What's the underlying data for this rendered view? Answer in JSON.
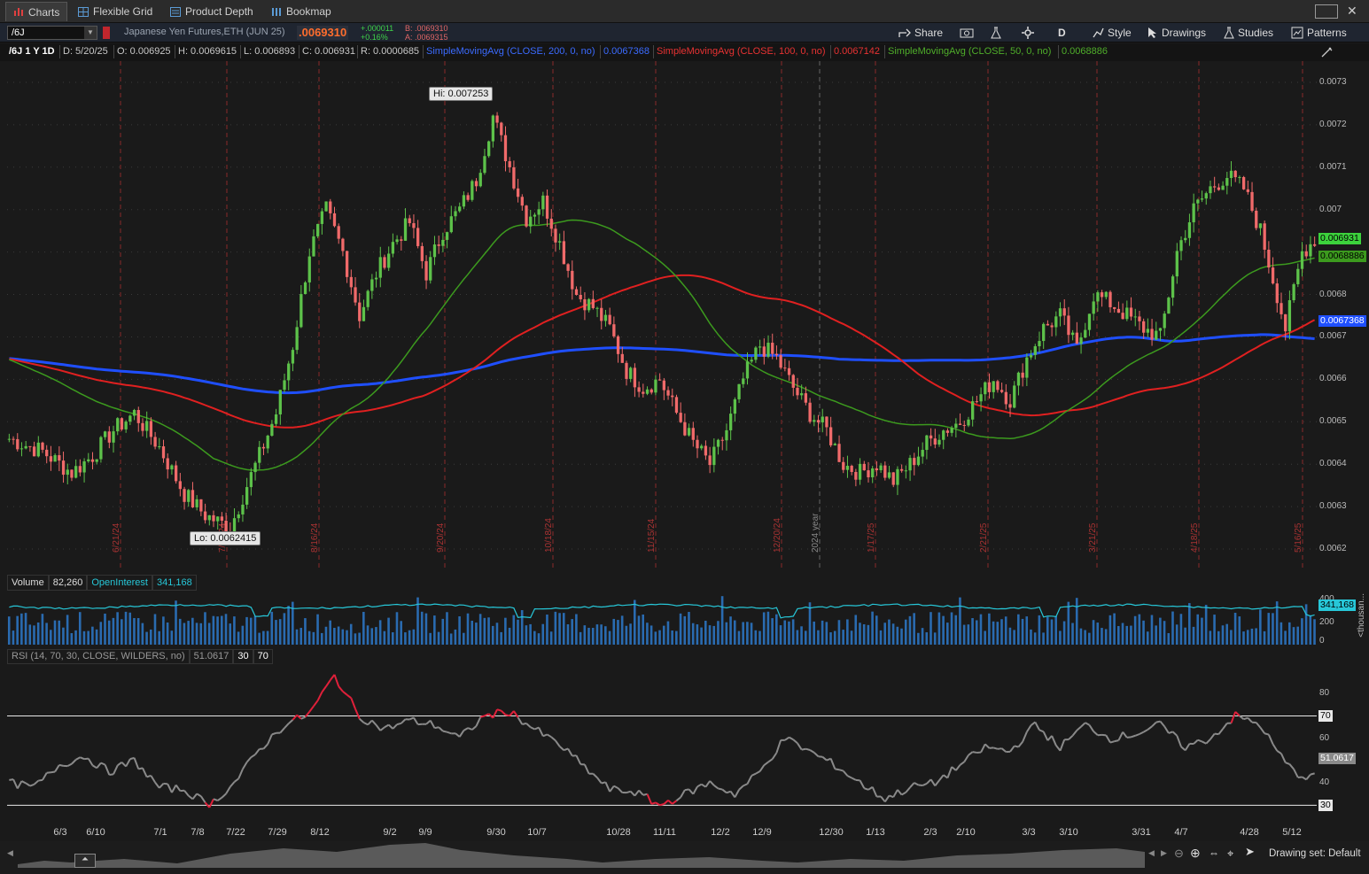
{
  "tabs": [
    {
      "label": "Charts",
      "icon": "bar-chart-icon"
    },
    {
      "label": "Flexible Grid",
      "icon": "grid-icon"
    },
    {
      "label": "Product Depth",
      "icon": "depth-icon"
    },
    {
      "label": "Bookmap",
      "icon": "bookmap-icon"
    }
  ],
  "toolbar": {
    "symbol": "/6J",
    "description": "Japanese Yen Futures,ETH (JUN 25)",
    "last": ".0069310",
    "net_change": "+.000011",
    "pct_change": "+0.16%",
    "bid": "B: .0069310",
    "ask": "A: .0069315",
    "share": "Share",
    "aggregation": "D",
    "style": "Style",
    "drawings": "Drawings",
    "studies": "Studies",
    "patterns": "Patterns"
  },
  "infobar": {
    "symbol_period": "/6J 1 Y 1D",
    "date": "D: 5/20/25",
    "open": "O: 0.006925",
    "high": "H: 0.0069615",
    "low": "L: 0.006893",
    "close": "C: 0.006931",
    "range": "R: 0.0000685",
    "sma200": "SimpleMovingAvg (CLOSE, 200, 0, no)",
    "sma200_val": "0.0067368",
    "sma100": "SimpleMovingAvg (CLOSE, 100, 0, no)",
    "sma100_val": "0.0067142",
    "sma50": "SimpleMovingAvg (CLOSE, 50, 0, no)",
    "sma50_val": "0.0068886"
  },
  "chart_data": {
    "type": "candlestick",
    "hi_label": "Hi: 0.007253",
    "lo_label": "Lo: 0.0062415",
    "price_ticks": [
      "0.0073",
      "0.0072",
      "0.0071",
      "0.007",
      "0.0068",
      "0.0067",
      "0.0066",
      "0.0065",
      "0.0064",
      "0.0063",
      "0.0062"
    ],
    "price_ticks_values": [
      0.0073,
      0.0072,
      0.0071,
      0.007,
      0.0068,
      0.0067,
      0.0066,
      0.0065,
      0.0064,
      0.0063,
      0.0062
    ],
    "ylim": [
      0.00615,
      0.00735
    ],
    "last_badge": "0.006931",
    "sma50_badge": "0.0068886",
    "sma200_badge": "0.0067368",
    "vertical_markers": [
      "6/21/24",
      "7/19/24",
      "8/16/24",
      "9/20/24",
      "10/18/24",
      "11/15/24",
      "12/20/24",
      "2024 year",
      "1/17/25",
      "2/21/25",
      "3/21/25",
      "4/18/25",
      "5/16/25"
    ],
    "close_path": [
      [
        0,
        0.00646
      ],
      [
        8,
        0.00643
      ],
      [
        15,
        0.00638
      ],
      [
        20,
        0.00642
      ],
      [
        25,
        0.00648
      ],
      [
        30,
        0.00652
      ],
      [
        36,
        0.00644
      ],
      [
        42,
        0.00633
      ],
      [
        47,
        0.00628
      ],
      [
        53,
        0.00625
      ],
      [
        57,
        0.00635
      ],
      [
        60,
        0.00642
      ],
      [
        64,
        0.00652
      ],
      [
        68,
        0.00668
      ],
      [
        72,
        0.0069
      ],
      [
        76,
        0.007
      ],
      [
        80,
        0.0069
      ],
      [
        84,
        0.00675
      ],
      [
        88,
        0.00685
      ],
      [
        92,
        0.00692
      ],
      [
        96,
        0.00697
      ],
      [
        100,
        0.00685
      ],
      [
        104,
        0.00695
      ],
      [
        108,
        0.007
      ],
      [
        112,
        0.00707
      ],
      [
        116,
        0.00722
      ],
      [
        120,
        0.0071
      ],
      [
        124,
        0.00698
      ],
      [
        128,
        0.00702
      ],
      [
        132,
        0.00692
      ],
      [
        136,
        0.0068
      ],
      [
        140,
        0.00677
      ],
      [
        144,
        0.00672
      ],
      [
        148,
        0.00662
      ],
      [
        152,
        0.00658
      ],
      [
        156,
        0.0066
      ],
      [
        160,
        0.00652
      ],
      [
        164,
        0.00645
      ],
      [
        168,
        0.0064
      ],
      [
        172,
        0.00648
      ],
      [
        176,
        0.0066
      ],
      [
        180,
        0.00668
      ],
      [
        184,
        0.00665
      ],
      [
        188,
        0.00658
      ],
      [
        192,
        0.00652
      ],
      [
        196,
        0.00648
      ],
      [
        200,
        0.0064
      ],
      [
        204,
        0.00638
      ],
      [
        208,
        0.0064
      ],
      [
        212,
        0.00636
      ],
      [
        216,
        0.0064
      ],
      [
        220,
        0.00645
      ],
      [
        224,
        0.00648
      ],
      [
        228,
        0.0065
      ],
      [
        232,
        0.00655
      ],
      [
        236,
        0.0066
      ],
      [
        240,
        0.00655
      ],
      [
        244,
        0.00665
      ],
      [
        248,
        0.00672
      ],
      [
        252,
        0.00675
      ],
      [
        256,
        0.00667
      ],
      [
        260,
        0.0068
      ],
      [
        264,
        0.00678
      ],
      [
        268,
        0.00675
      ],
      [
        272,
        0.00672
      ],
      [
        276,
        0.0067
      ],
      [
        280,
        0.0069
      ],
      [
        284,
        0.007
      ],
      [
        288,
        0.00705
      ],
      [
        292,
        0.00708
      ],
      [
        296,
        0.00705
      ],
      [
        300,
        0.00695
      ],
      [
        304,
        0.0068
      ],
      [
        306,
        0.00672
      ],
      [
        310,
        0.0069
      ],
      [
        313,
        0.00693
      ]
    ],
    "rsi_path": [
      [
        0,
        40
      ],
      [
        6,
        38
      ],
      [
        12,
        48
      ],
      [
        18,
        52
      ],
      [
        24,
        45
      ],
      [
        30,
        50
      ],
      [
        36,
        38
      ],
      [
        42,
        37
      ],
      [
        48,
        30
      ],
      [
        54,
        40
      ],
      [
        60,
        55
      ],
      [
        66,
        66
      ],
      [
        72,
        71
      ],
      [
        78,
        88
      ],
      [
        84,
        70
      ],
      [
        90,
        64
      ],
      [
        96,
        68
      ],
      [
        102,
        66
      ],
      [
        108,
        60
      ],
      [
        114,
        70
      ],
      [
        120,
        72
      ],
      [
        126,
        64
      ],
      [
        132,
        57
      ],
      [
        138,
        47
      ],
      [
        144,
        37
      ],
      [
        150,
        36
      ],
      [
        156,
        30
      ],
      [
        162,
        35
      ],
      [
        168,
        40
      ],
      [
        174,
        35
      ],
      [
        180,
        45
      ],
      [
        186,
        60
      ],
      [
        192,
        54
      ],
      [
        198,
        48
      ],
      [
        204,
        40
      ],
      [
        210,
        33
      ],
      [
        216,
        38
      ],
      [
        222,
        40
      ],
      [
        228,
        48
      ],
      [
        234,
        56
      ],
      [
        240,
        54
      ],
      [
        246,
        66
      ],
      [
        252,
        56
      ],
      [
        258,
        66
      ],
      [
        264,
        60
      ],
      [
        270,
        62
      ],
      [
        276,
        66
      ],
      [
        282,
        56
      ],
      [
        288,
        60
      ],
      [
        294,
        70
      ],
      [
        300,
        66
      ],
      [
        304,
        54
      ],
      [
        308,
        45
      ],
      [
        312,
        42
      ],
      [
        316,
        51
      ]
    ],
    "rsi_levels": [
      30,
      70
    ],
    "rsi_ticks": [
      "80",
      "70",
      "60",
      "51.0617",
      "40",
      "30"
    ],
    "volume_ticks": [
      "400",
      "200",
      "0"
    ],
    "date_axis": [
      {
        "label": "6/3",
        "x": 60
      },
      {
        "label": "6/10",
        "x": 100
      },
      {
        "label": "7/1",
        "x": 173
      },
      {
        "label": "7/8",
        "x": 215
      },
      {
        "label": "7/22",
        "x": 258
      },
      {
        "label": "7/29",
        "x": 305
      },
      {
        "label": "8/12",
        "x": 353
      },
      {
        "label": "9/2",
        "x": 432
      },
      {
        "label": "9/9",
        "x": 472
      },
      {
        "label": "9/30",
        "x": 552
      },
      {
        "label": "10/7",
        "x": 598
      },
      {
        "label": "10/28",
        "x": 690
      },
      {
        "label": "11/11",
        "x": 742
      },
      {
        "label": "12/2",
        "x": 805
      },
      {
        "label": "12/9",
        "x": 852
      },
      {
        "label": "12/30",
        "x": 930
      },
      {
        "label": "1/13",
        "x": 980
      },
      {
        "label": "2/3",
        "x": 1042
      },
      {
        "label": "2/10",
        "x": 1082
      },
      {
        "label": "3/3",
        "x": 1153
      },
      {
        "label": "3/10",
        "x": 1198
      },
      {
        "label": "3/31",
        "x": 1280
      },
      {
        "label": "4/7",
        "x": 1325
      },
      {
        "label": "4/28",
        "x": 1402
      },
      {
        "label": "5/12",
        "x": 1450
      }
    ]
  },
  "volume": {
    "label": "Volume",
    "value": "82,260",
    "oi_label": "OpenInterest",
    "oi_value": "341,168",
    "badge": "341,168",
    "units": "<thousan..."
  },
  "rsi": {
    "label": "RSI (14, 70, 30, CLOSE, WILDERS, no)",
    "value": "51.0617",
    "lvl_low": "30",
    "lvl_high": "70"
  },
  "footer": {
    "drawing_set": "Drawing set: Default"
  },
  "colors": {
    "sma200": "#1f4fff",
    "sma100": "#e02020",
    "sma50": "#3c9a1e",
    "up": "#5dc24a",
    "down": "#f06a6a",
    "oi": "#27c7d8",
    "vol": "#2a6bb0"
  }
}
